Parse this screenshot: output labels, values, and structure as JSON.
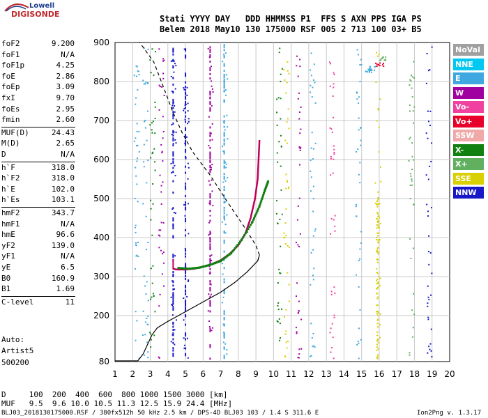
{
  "logo": {
    "top": "Lowell",
    "bottom": "DIGISONDE"
  },
  "header": {
    "line1": "Stati YYYY DAY   DDD HHMMSS P1  FFS S AXN PPS IGA PS",
    "line2": "Belem 2018 May10 130 175000 RSF 005 2 713 100 03+ B5"
  },
  "params": [
    {
      "key": "foF2",
      "value": "9.200"
    },
    {
      "key": "foF1",
      "value": "N/A"
    },
    {
      "key": "foF1p",
      "value": "4.25"
    },
    {
      "key": "foE",
      "value": "2.86"
    },
    {
      "key": "foEp",
      "value": "3.09"
    },
    {
      "key": "fxI",
      "value": "9.70"
    },
    {
      "key": "foEs",
      "value": "2.95"
    },
    {
      "key": "fmin",
      "value": "2.60"
    },
    {
      "key": "MUF(D)",
      "value": "24.43"
    },
    {
      "key": "M(D)",
      "value": "2.65"
    },
    {
      "key": "D",
      "value": "N/A"
    },
    {
      "key": "h`F",
      "value": "318.0"
    },
    {
      "key": "h`F2",
      "value": "318.0"
    },
    {
      "key": "h`E",
      "value": "102.0"
    },
    {
      "key": "h`Es",
      "value": "103.1"
    },
    {
      "key": "hmF2",
      "value": "343.7"
    },
    {
      "key": "hmF1",
      "value": "N/A"
    },
    {
      "key": "hmE",
      "value": "96.6"
    },
    {
      "key": "yF2",
      "value": "139.0"
    },
    {
      "key": "yF1",
      "value": "N/A"
    },
    {
      "key": "yE",
      "value": "6.5"
    },
    {
      "key": "B0",
      "value": "160.9"
    },
    {
      "key": "B1",
      "value": "1.69"
    },
    {
      "key": "C-level",
      "value": "11"
    }
  ],
  "auto": {
    "line1": "Auto:",
    "line2": "Artist5",
    "line3": "500200"
  },
  "legend": [
    {
      "label": "NoVal",
      "color": "#a0a0a0"
    },
    {
      "label": "NNE",
      "color": "#00c8f0"
    },
    {
      "label": "E",
      "color": "#40a8e0"
    },
    {
      "label": "W",
      "color": "#a000a0"
    },
    {
      "label": "Vo-",
      "color": "#f040a0"
    },
    {
      "label": "Vo+",
      "color": "#e8002a"
    },
    {
      "label": "SSW",
      "color": "#f0a8a8"
    },
    {
      "label": "X-",
      "color": "#108010"
    },
    {
      "label": "X+",
      "color": "#60b060"
    },
    {
      "label": "SSE",
      "color": "#d8d000"
    },
    {
      "label": "NNW",
      "color": "#1818c8"
    }
  ],
  "bottom": {
    "d_line": "D     100  200  400  600  800 1000 1500 3000 [km]",
    "muf_line": "MUF   9.5  9.6 10.0 10.5 11.3 12.5 15.9 24.4 [MHz]"
  },
  "footer": {
    "left": "BLJ03_2018130175000.RSF / 380fx512h 50 kHz 2.5 km / DPS-4D BLJ03 103 / 1.4 S 311.6 E",
    "right": "Ion2Png v. 1.3.17"
  },
  "chart_data": {
    "type": "scatter",
    "x_range": [
      1,
      20
    ],
    "y_range": [
      80,
      900
    ],
    "x_ticks": [
      "1",
      "2",
      "3",
      "4",
      "5",
      "6",
      "7",
      "8",
      "9",
      "10",
      "11",
      "12",
      "13",
      "14",
      "15",
      "16",
      "17",
      "18",
      "19",
      "20"
    ],
    "y_ticks": [
      "80",
      "200",
      "300",
      "400",
      "500",
      "600",
      "700",
      "800",
      "900"
    ],
    "grid": true,
    "trace_w": [
      [
        4.3,
        320
      ],
      [
        4.5,
        318
      ],
      [
        5.0,
        318
      ],
      [
        5.5,
        320
      ],
      [
        6.0,
        325
      ],
      [
        6.5,
        332
      ],
      [
        7.0,
        342
      ],
      [
        7.5,
        358
      ],
      [
        8.0,
        380
      ],
      [
        8.4,
        410
      ],
      [
        8.7,
        450
      ],
      [
        8.95,
        500
      ],
      [
        9.1,
        550
      ],
      [
        9.15,
        600
      ],
      [
        9.2,
        650
      ]
    ],
    "trace_x": [
      [
        4.6,
        322
      ],
      [
        5.2,
        320
      ],
      [
        5.8,
        323
      ],
      [
        6.4,
        330
      ],
      [
        7.0,
        340
      ],
      [
        7.6,
        360
      ],
      [
        8.2,
        395
      ],
      [
        8.8,
        440
      ],
      [
        9.2,
        480
      ],
      [
        9.5,
        520
      ],
      [
        9.7,
        545
      ]
    ],
    "profile_curve": [
      [
        2.3,
        82
      ],
      [
        2.6,
        100
      ],
      [
        2.9,
        130
      ],
      [
        3.1,
        150
      ],
      [
        3.4,
        168
      ],
      [
        4.0,
        185
      ],
      [
        5.0,
        210
      ],
      [
        6.0,
        235
      ],
      [
        7.0,
        260
      ],
      [
        7.8,
        285
      ],
      [
        8.5,
        312
      ],
      [
        9.1,
        340
      ],
      [
        9.2,
        355
      ],
      [
        9.0,
        380
      ],
      [
        8.3,
        430
      ],
      [
        7.4,
        490
      ],
      [
        6.4,
        560
      ],
      [
        5.4,
        620
      ],
      [
        4.8,
        670
      ],
      [
        4.3,
        720
      ],
      [
        3.8,
        780
      ],
      [
        3.2,
        850
      ],
      [
        2.4,
        900
      ]
    ],
    "spike_column_x": [
      4.3,
      5.0,
      6.4,
      7.2
    ],
    "annotation_clusters": [
      {
        "x": 15.3,
        "y": 830,
        "color": "#40a8e0"
      },
      {
        "x": 15.6,
        "y": 835,
        "color": "#40a8e0"
      },
      {
        "x": 16.0,
        "y": 845,
        "color": "#e8002a"
      },
      {
        "x": 16.2,
        "y": 860,
        "color": "#60b060"
      }
    ]
  }
}
